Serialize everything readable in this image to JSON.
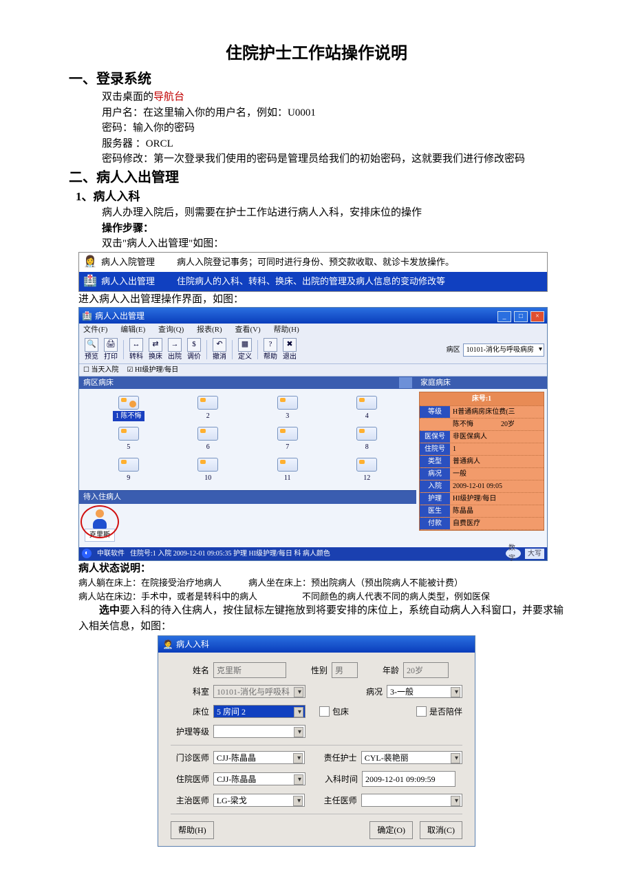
{
  "title": "住院护士工作站操作说明",
  "sec1": {
    "heading": "一、登录系统",
    "l1_pre": "双击桌面的",
    "l1_red": "导航台",
    "l2": "用户名：在这里输入你的用户名，例如：U0001",
    "l3": "密码：输入你的密码",
    "l4": "服务器 ：ORCL",
    "l5": "密码修改：第一次登录我们使用的密码是管理员给我们的初始密码，这就要我们进行修改密码"
  },
  "sec2": {
    "heading": "二、病人入出管理",
    "sub1": "1、病人入科",
    "p1": "病人办理入院后，则需要在护士工作站进行病人入科，安排床位的操作",
    "p2": "操作步骤：",
    "p3": "双击\"病人入出管理\"如图：",
    "p4": "进入病人入出管理操作界面，如图：",
    "state_title": "病人状态说明：",
    "state_l1a": "病人躺在床上：在院接受治疗地病人",
    "state_l1b": "病人坐在床上：预出院病人（预出院病人不能被计费）",
    "state_l2a": "病人站在床边：手术中，或者是转科中的病人",
    "state_l2b": "不同颜色的病人代表不同的病人类型，例如医保",
    "p5_pre": "选中",
    "p5_rest": "要入科的待入住病人，按住鼠标左键拖放到将要安排的床位上，系统自动病人入科窗口，并要求输入相关信息，如图："
  },
  "shot1": {
    "row1": {
      "label": "病人入院管理",
      "desc": "病人入院登记事务；可同时进行身份、预交款收取、就诊卡发放操作。"
    },
    "row2": {
      "label": "病人入出管理",
      "desc": "住院病人的入科、转科、换床、出院的管理及病人信息的变动修改等"
    }
  },
  "shot2": {
    "title": "病人入出管理",
    "menus": [
      "文件(F)",
      "编辑(E)",
      "查询(Q)",
      "报表(R)",
      "查看(V)",
      "帮助(H)"
    ],
    "toolbar": [
      "预览",
      "打印",
      "转科",
      "换床",
      "出院",
      "调价",
      "撤消",
      "定义",
      "帮助",
      "退出"
    ],
    "check1": "当天入院",
    "check2": "HI级护理/每日",
    "ward_label": "病区",
    "ward_value": "10101-消化与呼吸病房",
    "left_hdr": "病区病床",
    "right_hdr_empty": "",
    "beds": [
      {
        "n": "1",
        "sel": true,
        "label": "1 陈不悔"
      },
      {
        "n": "2"
      },
      {
        "n": "3"
      },
      {
        "n": "4"
      },
      {
        "n": "5"
      },
      {
        "n": "6"
      },
      {
        "n": "7"
      },
      {
        "n": "8"
      },
      {
        "n": "9"
      },
      {
        "n": "10"
      },
      {
        "n": "11"
      },
      {
        "n": "12"
      }
    ],
    "waiting_hdr": "待入住病人",
    "waiting_name": "克里斯",
    "side_hdr": "家庭病床",
    "bedinfo_title": "床号:1",
    "bedinfo_rows": [
      {
        "k": "等级",
        "v": "H普通病房床位费(三"
      },
      {
        "k": "",
        "v": "陈不悔　　　　20岁"
      },
      {
        "k": "医保号",
        "v": "非医保病人"
      },
      {
        "k": "住院号",
        "v": "1"
      },
      {
        "k": "类型",
        "v": "普通病人"
      },
      {
        "k": "病况",
        "v": "一般"
      },
      {
        "k": "入院",
        "v": "2009-12-01 09:05"
      },
      {
        "k": "护理",
        "v": "HI级护理/每日"
      },
      {
        "k": "医生",
        "v": "陈晶晶"
      },
      {
        "k": "付款",
        "v": "自费医疗"
      }
    ],
    "status_vendor": "中联软件",
    "status_text": "住院号:1 入院 2009-12-01 09:05:35 护理 HI级护理/每日 科 病人颜色",
    "status_end": [
      "数字",
      "大写"
    ]
  },
  "shot3": {
    "title": "病人入科",
    "rows": {
      "name_label": "姓名",
      "name_value": "克里斯",
      "sex_label": "性别",
      "sex_value": "男",
      "age_label": "年龄",
      "age_value": "20岁",
      "dept_label": "科室",
      "dept_value": "10101-消化与呼吸科",
      "cond_label": "病况",
      "cond_value": "3-一般",
      "bed_label": "床位",
      "bed_value": "5 房间 2",
      "chk_pack": "包床",
      "chk_accomp": "是否陪伴",
      "care_label": "护理等级",
      "care_value": "",
      "outdoc_label": "门诊医师",
      "outdoc_value": "CJJ-陈晶晶",
      "nurse_label": "责任护士",
      "nurse_value": "CYL-裴艳丽",
      "indoc_label": "住院医师",
      "indoc_value": "CJJ-陈晶晶",
      "time_label": "入科时间",
      "time_value": "2009-12-01 09:09:59",
      "attend_label": "主治医师",
      "attend_value": "LG-梁戈",
      "chief_label": "主任医师",
      "chief_value": ""
    },
    "btn_help": "帮助(H)",
    "btn_ok": "确定(O)",
    "btn_cancel": "取消(C)"
  }
}
